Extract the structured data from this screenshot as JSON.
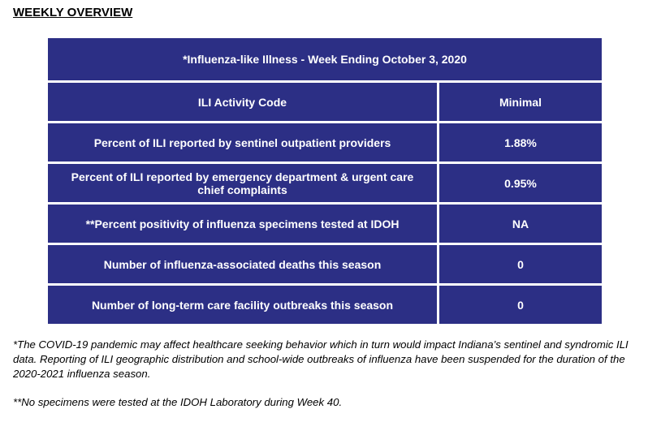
{
  "header": {
    "title": "WEEKLY OVERVIEW"
  },
  "table": {
    "caption": "*Influenza-like Illness - Week Ending October 3, 2020",
    "rows": [
      [
        "ILI Activity Code",
        "Minimal"
      ],
      [
        "Percent of ILI reported by sentinel outpatient providers",
        "1.88%"
      ],
      [
        "Percent of ILI reported by emergency department & urgent care chief complaints",
        "0.95%"
      ],
      [
        "**Percent positivity of influenza specimens tested at IDOH",
        "NA"
      ],
      [
        "Number of influenza-associated deaths this season",
        "0"
      ],
      [
        "Number of long-term care facility outbreaks this season",
        "0"
      ]
    ]
  },
  "footnotes": [
    "*The COVID-19 pandemic may affect healthcare seeking behavior which in turn would impact Indiana’s sentinel and syndromic ILI data. Reporting of ILI geographic distribution and school-wide outbreaks of influenza have been suspended for the duration of the 2020-2021 influenza season.",
    "**No specimens were tested at the IDOH Laboratory during Week 40."
  ]
}
